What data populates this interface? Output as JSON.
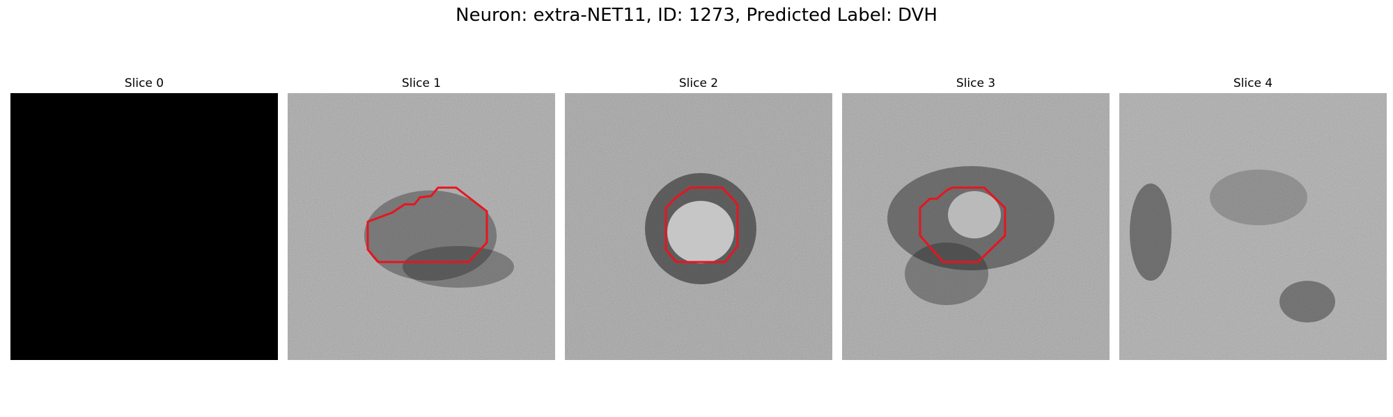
{
  "figure": {
    "title": "Neuron: extra-NET11, ID: 1273, Predicted Label: DVH"
  },
  "panels": [
    {
      "title": "Slice 0",
      "image": "black-slice",
      "has_contour": false
    },
    {
      "title": "Slice 1",
      "image": "grayscale-em-slice",
      "has_contour": true
    },
    {
      "title": "Slice 2",
      "image": "grayscale-em-slice",
      "has_contour": true
    },
    {
      "title": "Slice 3",
      "image": "grayscale-em-slice",
      "has_contour": true
    },
    {
      "title": "Slice 4",
      "image": "grayscale-em-slice",
      "has_contour": false
    }
  ],
  "colors": {
    "contour": "#e8141e",
    "background": "#ffffff",
    "empty_slice": "#000000"
  }
}
